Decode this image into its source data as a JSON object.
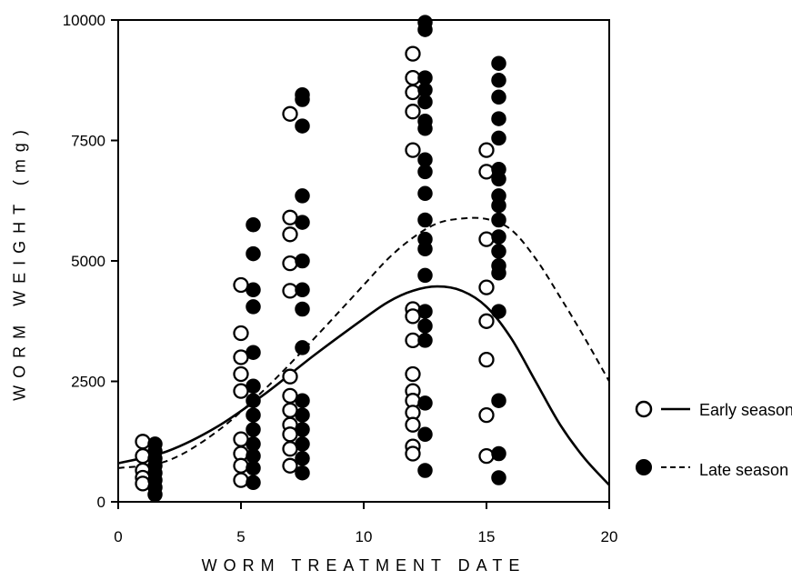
{
  "chart_data": {
    "type": "scatter",
    "xlabel": "WORM TREATMENT DATE",
    "ylabel": "WORM WEIGHT (mg)",
    "xlim": [
      0,
      20
    ],
    "ylim": [
      0,
      10000
    ],
    "xticks": [
      "0",
      "5",
      "10",
      "15",
      "20"
    ],
    "yticks": [
      "0",
      "2500",
      "5000",
      "7500",
      "10000"
    ],
    "grid": false,
    "legend_position": "right",
    "series": [
      {
        "name": "Early season",
        "marker": "open-circle",
        "color": "#000000",
        "points": [
          [
            1,
            1250
          ],
          [
            1,
            950
          ],
          [
            1,
            650
          ],
          [
            1,
            500
          ],
          [
            1,
            380
          ],
          [
            5,
            4500
          ],
          [
            5,
            3500
          ],
          [
            5,
            3000
          ],
          [
            5,
            2650
          ],
          [
            5,
            2300
          ],
          [
            5,
            1300
          ],
          [
            5,
            1000
          ],
          [
            5,
            750
          ],
          [
            5,
            450
          ],
          [
            7,
            8050
          ],
          [
            7,
            5900
          ],
          [
            7,
            5550
          ],
          [
            7,
            4950
          ],
          [
            7,
            4380
          ],
          [
            7,
            2600
          ],
          [
            7,
            2200
          ],
          [
            7,
            1900
          ],
          [
            7,
            1600
          ],
          [
            7,
            1400
          ],
          [
            7,
            1100
          ],
          [
            7,
            750
          ],
          [
            12,
            9300
          ],
          [
            12,
            8800
          ],
          [
            12,
            8500
          ],
          [
            12,
            8100
          ],
          [
            12,
            7300
          ],
          [
            12,
            4000
          ],
          [
            12,
            3850
          ],
          [
            12,
            3350
          ],
          [
            12,
            2650
          ],
          [
            12,
            2300
          ],
          [
            12,
            2100
          ],
          [
            12,
            1850
          ],
          [
            12,
            1600
          ],
          [
            12,
            1150
          ],
          [
            12,
            1000
          ],
          [
            15,
            7300
          ],
          [
            15,
            6850
          ],
          [
            15,
            5450
          ],
          [
            15,
            4450
          ],
          [
            15,
            3750
          ],
          [
            15,
            2950
          ],
          [
            15,
            1800
          ],
          [
            15,
            950
          ]
        ]
      },
      {
        "name": "Late season",
        "marker": "filled-circle",
        "color": "#000000",
        "points": [
          [
            1.5,
            1200
          ],
          [
            1.5,
            1050
          ],
          [
            1.5,
            900
          ],
          [
            1.5,
            750
          ],
          [
            1.5,
            600
          ],
          [
            1.5,
            450
          ],
          [
            1.5,
            300
          ],
          [
            1.5,
            150
          ],
          [
            5.5,
            5750
          ],
          [
            5.5,
            5150
          ],
          [
            5.5,
            4400
          ],
          [
            5.5,
            4050
          ],
          [
            5.5,
            3100
          ],
          [
            5.5,
            2400
          ],
          [
            5.5,
            2100
          ],
          [
            5.5,
            1800
          ],
          [
            5.5,
            1500
          ],
          [
            5.5,
            1200
          ],
          [
            5.5,
            950
          ],
          [
            5.5,
            700
          ],
          [
            5.5,
            400
          ],
          [
            7.5,
            8450
          ],
          [
            7.5,
            8350
          ],
          [
            7.5,
            7800
          ],
          [
            7.5,
            6350
          ],
          [
            7.5,
            5800
          ],
          [
            7.5,
            5000
          ],
          [
            7.5,
            4400
          ],
          [
            7.5,
            4000
          ],
          [
            7.5,
            3200
          ],
          [
            7.5,
            2100
          ],
          [
            7.5,
            1800
          ],
          [
            7.5,
            1500
          ],
          [
            7.5,
            1200
          ],
          [
            7.5,
            900
          ],
          [
            7.5,
            600
          ],
          [
            12.5,
            9950
          ],
          [
            12.5,
            9800
          ],
          [
            12.5,
            8800
          ],
          [
            12.5,
            8550
          ],
          [
            12.5,
            8300
          ],
          [
            12.5,
            7900
          ],
          [
            12.5,
            7750
          ],
          [
            12.5,
            7100
          ],
          [
            12.5,
            6850
          ],
          [
            12.5,
            6400
          ],
          [
            12.5,
            5850
          ],
          [
            12.5,
            5450
          ],
          [
            12.5,
            5250
          ],
          [
            12.5,
            4700
          ],
          [
            12.5,
            3950
          ],
          [
            12.5,
            3650
          ],
          [
            12.5,
            3350
          ],
          [
            12.5,
            2050
          ],
          [
            12.5,
            1400
          ],
          [
            12.5,
            650
          ],
          [
            15.5,
            9100
          ],
          [
            15.5,
            8750
          ],
          [
            15.5,
            8400
          ],
          [
            15.5,
            7950
          ],
          [
            15.5,
            7550
          ],
          [
            15.5,
            6900
          ],
          [
            15.5,
            6700
          ],
          [
            15.5,
            6350
          ],
          [
            15.5,
            6150
          ],
          [
            15.5,
            5850
          ],
          [
            15.5,
            5500
          ],
          [
            15.5,
            5200
          ],
          [
            15.5,
            4900
          ],
          [
            15.5,
            4750
          ],
          [
            15.5,
            3950
          ],
          [
            15.5,
            2100
          ],
          [
            15.5,
            1000
          ],
          [
            15.5,
            500
          ]
        ]
      }
    ],
    "curves": [
      {
        "name": "Early season",
        "style": "solid",
        "points": [
          [
            0,
            800
          ],
          [
            2,
            1050
          ],
          [
            4,
            1550
          ],
          [
            6,
            2250
          ],
          [
            8,
            3050
          ],
          [
            10,
            3800
          ],
          [
            11,
            4150
          ],
          [
            12,
            4380
          ],
          [
            13,
            4470
          ],
          [
            14,
            4380
          ],
          [
            15,
            4050
          ],
          [
            16,
            3400
          ],
          [
            17,
            2500
          ],
          [
            18,
            1600
          ],
          [
            19,
            900
          ],
          [
            20,
            350
          ]
        ]
      },
      {
        "name": "Late season",
        "style": "dashed",
        "points": [
          [
            0,
            700
          ],
          [
            2,
            850
          ],
          [
            4,
            1450
          ],
          [
            6,
            2350
          ],
          [
            8,
            3400
          ],
          [
            10,
            4500
          ],
          [
            11,
            5050
          ],
          [
            12,
            5480
          ],
          [
            13,
            5780
          ],
          [
            14,
            5880
          ],
          [
            15,
            5870
          ],
          [
            16,
            5650
          ],
          [
            17,
            5050
          ],
          [
            18,
            4250
          ],
          [
            19,
            3400
          ],
          [
            20,
            2500
          ]
        ]
      }
    ]
  }
}
